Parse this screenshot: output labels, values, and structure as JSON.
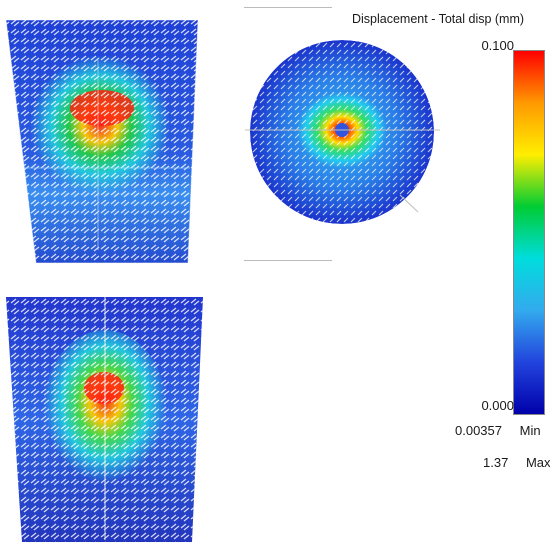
{
  "legend": {
    "title": "Displacement - Total disp (mm)",
    "max_label": "0.100",
    "min_label": "0.000",
    "colormap": [
      "#ff0000",
      "#ff9900",
      "#ffee00",
      "#00cc33",
      "#00dddd",
      "#33aaee",
      "#2244dd",
      "#0000aa"
    ]
  },
  "stats": {
    "min_value": "0.00357",
    "min_label": "Min",
    "max_value": "1.37",
    "max_label": "Max"
  },
  "views": {
    "top_left": "front-view",
    "top_right": "top-view",
    "bottom_left": "side-view"
  }
}
